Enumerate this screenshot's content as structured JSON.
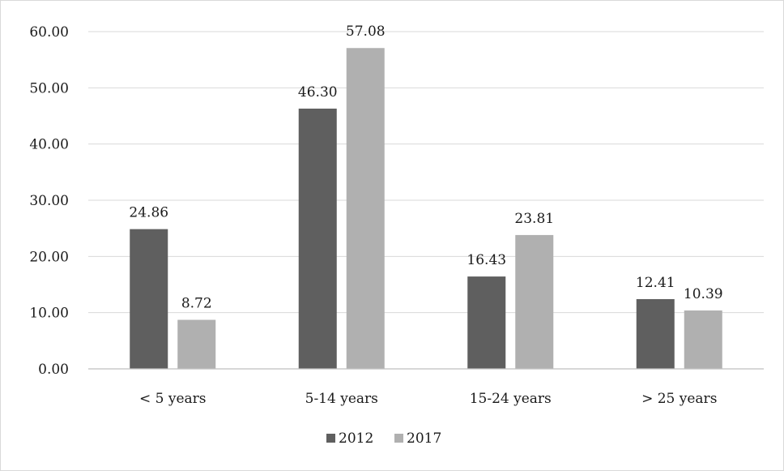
{
  "chart_data": {
    "type": "bar",
    "categories": [
      "< 5 years",
      "5-14 years",
      "15-24 years",
      "> 25 years"
    ],
    "series": [
      {
        "name": "2012",
        "values": [
          24.86,
          46.3,
          16.43,
          12.41
        ],
        "labels": [
          "24.86",
          "46.30",
          "16.43",
          "12.41"
        ]
      },
      {
        "name": "2017",
        "values": [
          8.72,
          57.08,
          23.81,
          10.39
        ],
        "labels": [
          "8.72",
          "57.08",
          "23.81",
          "10.39"
        ]
      }
    ],
    "y_ticks": [
      0,
      10,
      20,
      30,
      40,
      50,
      60
    ],
    "y_tick_labels": [
      "0.00",
      "10.00",
      "20.00",
      "30.00",
      "40.00",
      "50.00",
      "60.00"
    ],
    "ylim": [
      0,
      60
    ],
    "grid": true,
    "legend_position": "bottom",
    "colors": [
      "#5f5f5f",
      "#b0b0b0"
    ],
    "gridline_color": "#d9d9d9",
    "axis_color": "#bfbfbf"
  }
}
